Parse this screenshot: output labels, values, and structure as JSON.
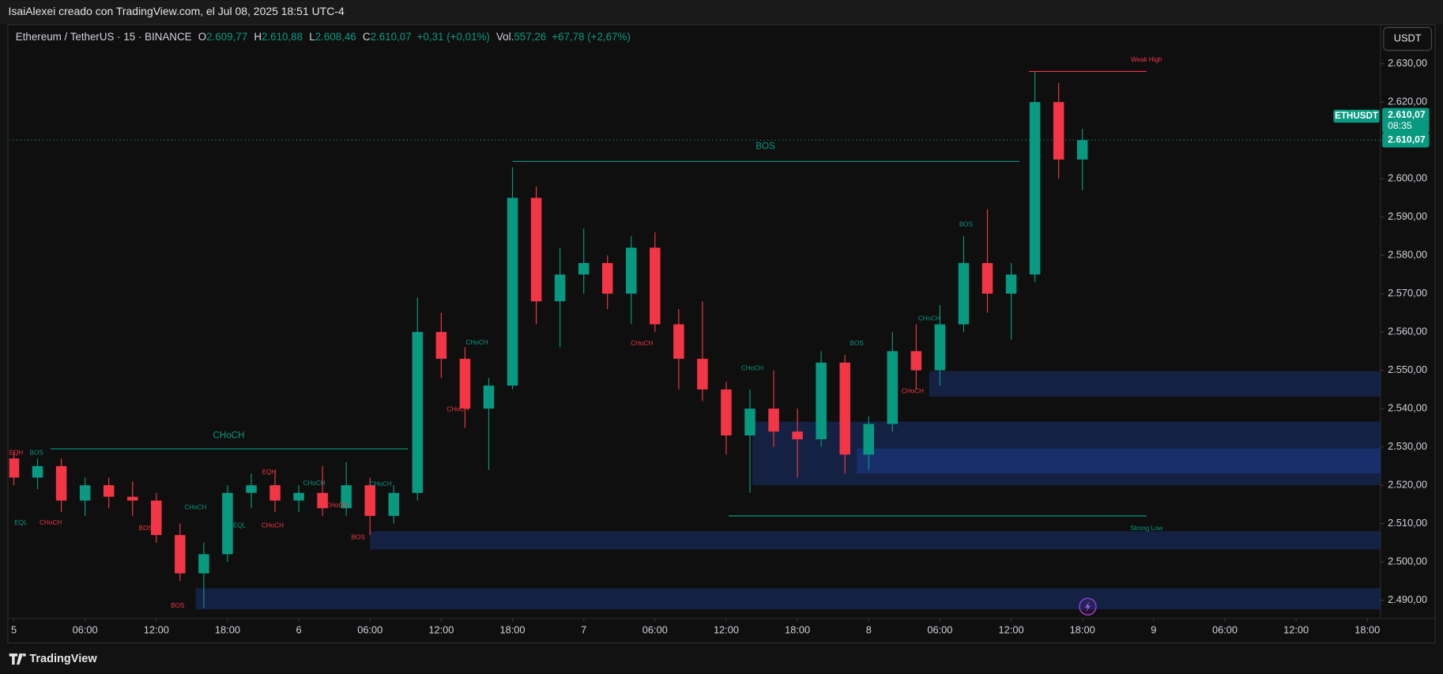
{
  "header": {
    "author_line": "IsaiAlexei creado con TradingView.com, el Jul 08, 2025 18:51 UTC-4"
  },
  "chart_data": {
    "type": "candlestick",
    "symbol": "Ethereum / TetherUS · 15 · BINANCE",
    "ohlc_legend": [
      {
        "label": "O",
        "value": "2.609,77"
      },
      {
        "label": "H",
        "value": "2.610,88"
      },
      {
        "label": "L",
        "value": "2.608,46"
      },
      {
        "label": "C",
        "value": "2.610,07"
      }
    ],
    "change": "+0,31 (+0,01%)",
    "volume_label": "Vol.",
    "volume": "557,26",
    "volume_change": "+67,78 (+2,67%)",
    "currency": "USDT",
    "ticker": "ETHUSDT",
    "last_price": 2610.07,
    "last_price_label": "2.610,07",
    "countdown": "08:35",
    "up_color": "#089981",
    "down_color": "#f23645",
    "grid": false,
    "candles": {
      "x": [
        0,
        2,
        4,
        6,
        8,
        10,
        12,
        14,
        16,
        18,
        20,
        22,
        24,
        26,
        28,
        30,
        32,
        34,
        36,
        38,
        40,
        42,
        44,
        46,
        48,
        50,
        52,
        54,
        56,
        58,
        60,
        62,
        64,
        66,
        68,
        70,
        72,
        74,
        76,
        78,
        80,
        82,
        84,
        86,
        88,
        90
      ],
      "open": [
        2527,
        2522,
        2525,
        2516,
        2520,
        2517,
        2516,
        2507,
        2497,
        2502,
        2518,
        2520,
        2516,
        2518,
        2514,
        2520,
        2512,
        2518,
        2560,
        2553,
        2540,
        2546,
        2595,
        2568,
        2575,
        2578,
        2570,
        2582,
        2562,
        2553,
        2545,
        2533,
        2540,
        2534,
        2532,
        2552,
        2528,
        2536,
        2555,
        2550,
        2562,
        2578,
        2570,
        2575,
        2620,
        2605
      ],
      "high": [
        2529,
        2527,
        2527,
        2522,
        2522,
        2521,
        2518,
        2510,
        2505,
        2520,
        2523,
        2524,
        2520,
        2525,
        2526,
        2522,
        2520,
        2569,
        2565,
        2556,
        2548,
        2603,
        2598,
        2582,
        2587,
        2580,
        2585,
        2586,
        2566,
        2568,
        2547,
        2545,
        2550,
        2540,
        2555,
        2554,
        2538,
        2560,
        2562,
        2567,
        2585,
        2592,
        2578,
        2628,
        2625,
        2613
      ],
      "low": [
        2520,
        2519,
        2513,
        2512,
        2514,
        2512,
        2505,
        2495,
        2488,
        2500,
        2514,
        2513,
        2513,
        2512,
        2512,
        2507,
        2510,
        2516,
        2548,
        2535,
        2524,
        2545,
        2562,
        2556,
        2570,
        2566,
        2562,
        2560,
        2545,
        2542,
        2528,
        2518,
        2530,
        2522,
        2530,
        2523,
        2524,
        2534,
        2545,
        2546,
        2560,
        2565,
        2558,
        2573,
        2600,
        2597
      ],
      "close": [
        2522,
        2525,
        2516,
        2520,
        2517,
        2516,
        2507,
        2497,
        2502,
        2518,
        2520,
        2516,
        2518,
        2514,
        2520,
        2512,
        2518,
        2560,
        2553,
        2540,
        2546,
        2595,
        2568,
        2575,
        2578,
        2570,
        2582,
        2562,
        2553,
        2545,
        2533,
        2540,
        2534,
        2532,
        2552,
        2528,
        2536,
        2555,
        2550,
        2562,
        2578,
        2570,
        2575,
        2620,
        2605,
        2610.07
      ]
    },
    "xlim": [
      -0.39,
      115.1
    ],
    "ylim": [
      2485.2,
      2640.1
    ],
    "xticks": [
      {
        "value": 0,
        "label": "5"
      },
      {
        "value": 6,
        "label": "06:00"
      },
      {
        "value": 12,
        "label": "12:00"
      },
      {
        "value": 18,
        "label": "18:00"
      },
      {
        "value": 24,
        "label": "6"
      },
      {
        "value": 30,
        "label": "06:00"
      },
      {
        "value": 36,
        "label": "12:00"
      },
      {
        "value": 42,
        "label": "18:00"
      },
      {
        "value": 48,
        "label": "7"
      },
      {
        "value": 54,
        "label": "06:00"
      },
      {
        "value": 60,
        "label": "12:00"
      },
      {
        "value": 66,
        "label": "18:00"
      },
      {
        "value": 72,
        "label": "8"
      },
      {
        "value": 78,
        "label": "06:00"
      },
      {
        "value": 84,
        "label": "12:00"
      },
      {
        "value": 90,
        "label": "18:00"
      },
      {
        "value": 96,
        "label": "9"
      },
      {
        "value": 102,
        "label": "06:00"
      },
      {
        "value": 108,
        "label": "12:00"
      },
      {
        "value": 114,
        "label": "18:00"
      }
    ],
    "yticks": [
      {
        "value": 2490,
        "label": "2.490,00"
      },
      {
        "value": 2500,
        "label": "2.500,00"
      },
      {
        "value": 2510,
        "label": "2.510,00"
      },
      {
        "value": 2520,
        "label": "2.520,00"
      },
      {
        "value": 2530,
        "label": "2.530,00"
      },
      {
        "value": 2540,
        "label": "2.540,00"
      },
      {
        "value": 2550,
        "label": "2.550,00"
      },
      {
        "value": 2560,
        "label": "2.560,00"
      },
      {
        "value": 2570,
        "label": "2.570,00"
      },
      {
        "value": 2580,
        "label": "2.580,00"
      },
      {
        "value": 2590,
        "label": "2.590,00"
      },
      {
        "value": 2600,
        "label": "2.600,00"
      },
      {
        "value": 2610,
        "label": "2.610,00"
      },
      {
        "value": 2620,
        "label": "2.620,00"
      },
      {
        "value": 2630,
        "label": "2.630,00"
      }
    ],
    "lines": [
      {
        "start": 3.1,
        "end": 33.2,
        "price": 2529.5,
        "color": "#089981"
      },
      {
        "start": 42,
        "end": 84.7,
        "price": 2604.5,
        "color": "#089981"
      },
      {
        "start": 85.5,
        "end": 95.4,
        "price": 2628,
        "color": "#f23645"
      },
      {
        "start": 60.2,
        "end": 95.4,
        "price": 2512,
        "color": "#089981"
      }
    ],
    "zones": [
      {
        "start": 77.1,
        "top": 2549.8,
        "bottom": 2543.1
      },
      {
        "start": 62.2,
        "top": 2536.6,
        "bottom": 2520
      },
      {
        "start": 71,
        "top": 2529.6,
        "bottom": 2523.1
      },
      {
        "start": 30,
        "top": 2508,
        "bottom": 2503.2
      },
      {
        "start": 15.3,
        "top": 2493.1,
        "bottom": 2487.6
      }
    ],
    "annotations": [
      {
        "text": "EQH",
        "x": 0.2,
        "y": 2528.4,
        "color": "#f23645",
        "size": "small"
      },
      {
        "text": "BOS",
        "x": 1.9,
        "y": 2528.4,
        "color": "#089981",
        "size": "small"
      },
      {
        "text": "EQL",
        "x": 0.6,
        "y": 2510.2,
        "color": "#089981",
        "size": "small"
      },
      {
        "text": "CHoCH",
        "x": 3.1,
        "y": 2510.2,
        "color": "#f23645",
        "size": "small"
      },
      {
        "text": "BOS",
        "x": 11.1,
        "y": 2508.7,
        "color": "#f23645",
        "size": "small"
      },
      {
        "text": "CHoCH",
        "x": 15.3,
        "y": 2514.2,
        "color": "#089981",
        "size": "small"
      },
      {
        "text": "EQL",
        "x": 19,
        "y": 2509.4,
        "color": "#089981",
        "size": "small"
      },
      {
        "text": "EQH",
        "x": 21.5,
        "y": 2523.4,
        "color": "#f23645",
        "size": "small"
      },
      {
        "text": "CHoCH",
        "x": 21.8,
        "y": 2509.4,
        "color": "#f23645",
        "size": "small"
      },
      {
        "text": "CHoCH",
        "x": 25.3,
        "y": 2520.5,
        "color": "#089981",
        "size": "small"
      },
      {
        "text": "CHoCH",
        "x": 27.2,
        "y": 2514.7,
        "color": "#f23645",
        "size": "small"
      },
      {
        "text": "BOS",
        "x": 29,
        "y": 2506.3,
        "color": "#f23645",
        "size": "small"
      },
      {
        "text": "CHoCH",
        "x": 30.9,
        "y": 2520.3,
        "color": "#089981",
        "size": "small"
      },
      {
        "text": "BOS",
        "x": 13.8,
        "y": 2488.5,
        "color": "#f23645",
        "size": "small"
      },
      {
        "text": "CHoCH",
        "x": 18.1,
        "y": 2532.9,
        "color": "#089981",
        "size": "large"
      },
      {
        "text": "BOS",
        "x": 63.3,
        "y": 2608.4,
        "color": "#089981",
        "size": "large"
      },
      {
        "text": "CHoCH",
        "x": 39,
        "y": 2557.2,
        "color": "#089981",
        "size": "small"
      },
      {
        "text": "CHoCH",
        "x": 37.4,
        "y": 2539.7,
        "color": "#f23645",
        "size": "small"
      },
      {
        "text": "CHoCH",
        "x": 52.9,
        "y": 2557,
        "color": "#f23645",
        "size": "small"
      },
      {
        "text": "CHoCH",
        "x": 62.2,
        "y": 2550.5,
        "color": "#089981",
        "size": "small"
      },
      {
        "text": "BOS",
        "x": 71,
        "y": 2557,
        "color": "#089981",
        "size": "small"
      },
      {
        "text": "CHoCH",
        "x": 77.1,
        "y": 2563.5,
        "color": "#089981",
        "size": "small"
      },
      {
        "text": "CHoCH",
        "x": 75.7,
        "y": 2544.5,
        "color": "#f23645",
        "size": "small"
      },
      {
        "text": "BOS",
        "x": 80.2,
        "y": 2588,
        "color": "#089981",
        "size": "small"
      },
      {
        "text": "Weak High",
        "x": 95.4,
        "y": 2631,
        "color": "#f23645",
        "size": "small"
      },
      {
        "text": "Strong Low",
        "x": 95.4,
        "y": 2508.7,
        "color": "#089981",
        "size": "small"
      }
    ]
  },
  "footer": {
    "brand": "TradingView"
  }
}
